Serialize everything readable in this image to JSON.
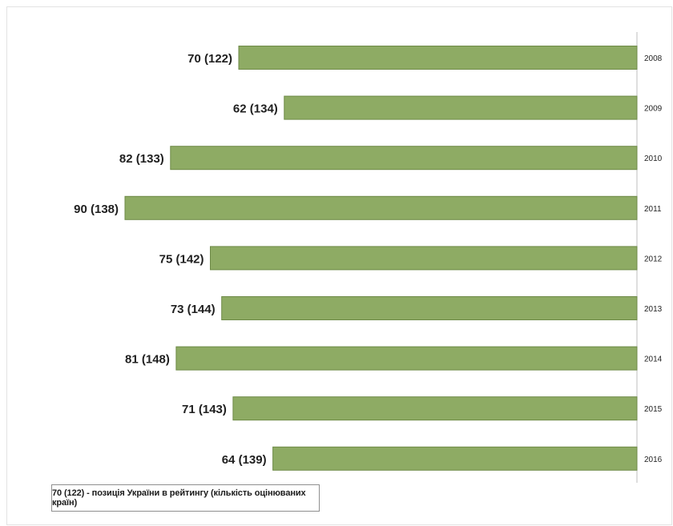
{
  "chart_data": {
    "type": "bar",
    "orientation": "horizontal",
    "categories": [
      "2008",
      "2009",
      "2010",
      "2011",
      "2012",
      "2013",
      "2014",
      "2015",
      "2016"
    ],
    "values": [
      70,
      62,
      82,
      90,
      75,
      73,
      81,
      71,
      64
    ],
    "totals": [
      122,
      134,
      133,
      138,
      142,
      144,
      148,
      143,
      139
    ],
    "labels": [
      "70 (122)",
      "62 (134)",
      "82 (133)",
      "90 (138)",
      "75 (142)",
      "73 (144)",
      "81 (148)",
      "71 (143)",
      "64 (139)"
    ],
    "xlim": [
      0,
      100
    ],
    "bars_grow_from": "right",
    "category_axis_position": "right",
    "grid": false,
    "colors": {
      "bar": "#8eab64",
      "bar_stroke": "#6e8a47",
      "axis": "#bdbdbd",
      "text": "#1f1f1f"
    }
  },
  "legend": {
    "text": "70 (122) - позиція України в рейтингу (кількість оцінюваних країн)"
  }
}
